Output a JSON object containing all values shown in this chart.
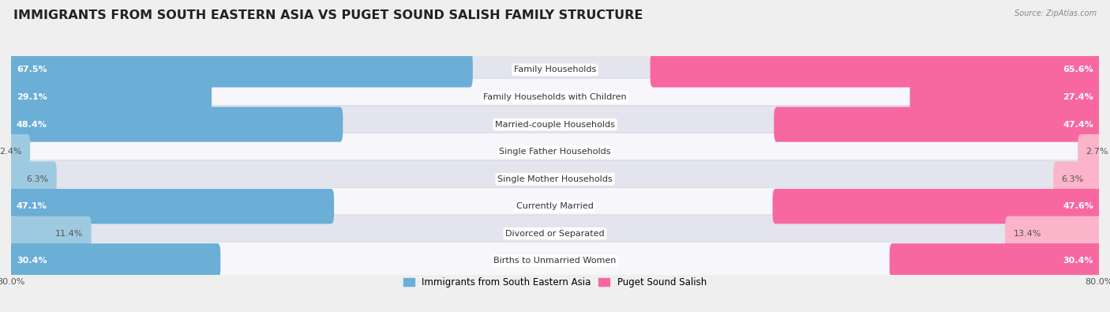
{
  "title": "IMMIGRANTS FROM SOUTH EASTERN ASIA VS PUGET SOUND SALISH FAMILY STRUCTURE",
  "source": "Source: ZipAtlas.com",
  "categories": [
    "Family Households",
    "Family Households with Children",
    "Married-couple Households",
    "Single Father Households",
    "Single Mother Households",
    "Currently Married",
    "Divorced or Separated",
    "Births to Unmarried Women"
  ],
  "left_values": [
    67.5,
    29.1,
    48.4,
    2.4,
    6.3,
    47.1,
    11.4,
    30.4
  ],
  "right_values": [
    65.6,
    27.4,
    47.4,
    2.7,
    6.3,
    47.6,
    13.4,
    30.4
  ],
  "left_labels": [
    "67.5%",
    "29.1%",
    "48.4%",
    "2.4%",
    "6.3%",
    "47.1%",
    "11.4%",
    "30.4%"
  ],
  "right_labels": [
    "65.6%",
    "27.4%",
    "47.4%",
    "2.7%",
    "6.3%",
    "47.6%",
    "13.4%",
    "30.4%"
  ],
  "left_color_strong": "#6BAED6",
  "left_color_light": "#9ECAE1",
  "right_color_strong": "#F768A1",
  "right_color_light": "#FBB4CA",
  "bg_color": "#EFEFEF",
  "row_bg_light": "#F7F7FB",
  "row_bg_dark": "#E4E4EE",
  "x_max": 80.0,
  "legend_left": "Immigrants from South Eastern Asia",
  "legend_right": "Puget Sound Salish",
  "title_fontsize": 11.5,
  "label_fontsize": 8,
  "category_fontsize": 8,
  "axis_fontsize": 8,
  "strong_threshold": 15
}
